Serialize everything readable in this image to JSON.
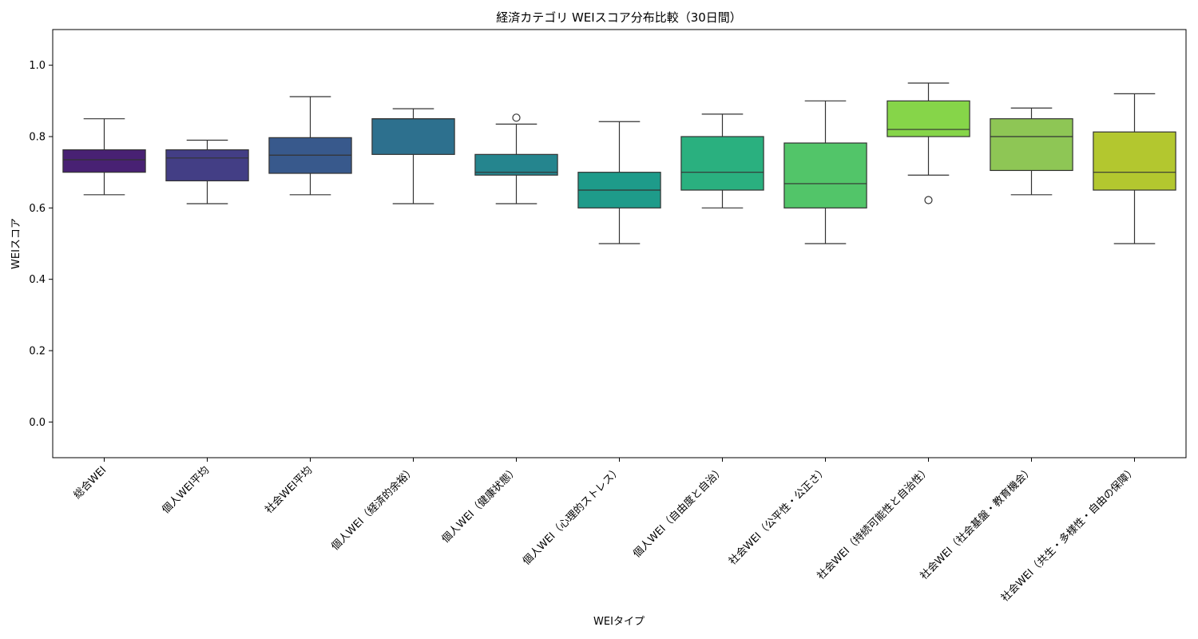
{
  "chart_data": {
    "type": "box",
    "title": "経済カテゴリ WEIスコア分布比較（30日間）",
    "xlabel": "WEIタイプ",
    "ylabel": "WEIスコア",
    "ylim": [
      -0.1,
      1.1
    ],
    "yticks": [
      "0.0",
      "0.2",
      "0.4",
      "0.6",
      "0.8",
      "1.0"
    ],
    "ytick_values": [
      0.0,
      0.2,
      0.4,
      0.6,
      0.8,
      1.0
    ],
    "grid": false,
    "legend": "none",
    "categories": [
      "総合WEI",
      "個人WEI平均",
      "社会WEI平均",
      "個人WEI（経済的余裕）",
      "個人WEI（健康状態）",
      "個人WEI（心理的ストレス）",
      "個人WEI（自由度と自治）",
      "社会WEI（公平性・公正さ）",
      "社会WEI（持続可能性と自治性）",
      "社会WEI（社会基盤・教育機会）",
      "社会WEI（共生・多様性・自由の保障）"
    ],
    "boxes": [
      {
        "whisker_low": 0.637,
        "q1": 0.7,
        "median": 0.735,
        "q3": 0.763,
        "whisker_high": 0.85,
        "outliers": [],
        "color": "#482173"
      },
      {
        "whisker_low": 0.612,
        "q1": 0.676,
        "median": 0.74,
        "q3": 0.763,
        "whisker_high": 0.79,
        "outliers": [],
        "color": "#433e85"
      },
      {
        "whisker_low": 0.637,
        "q1": 0.697,
        "median": 0.748,
        "q3": 0.797,
        "whisker_high": 0.912,
        "outliers": [],
        "color": "#38598c"
      },
      {
        "whisker_low": 0.612,
        "q1": 0.75,
        "median": 0.85,
        "q3": 0.85,
        "whisker_high": 0.878,
        "outliers": [],
        "color": "#2d708e"
      },
      {
        "whisker_low": 0.612,
        "q1": 0.692,
        "median": 0.7,
        "q3": 0.75,
        "whisker_high": 0.835,
        "outliers": [
          0.853
        ],
        "color": "#25858e"
      },
      {
        "whisker_low": 0.5,
        "q1": 0.6,
        "median": 0.65,
        "q3": 0.7,
        "whisker_high": 0.842,
        "outliers": [],
        "color": "#1e9b8a"
      },
      {
        "whisker_low": 0.6,
        "q1": 0.65,
        "median": 0.7,
        "q3": 0.8,
        "whisker_high": 0.863,
        "outliers": [],
        "color": "#2ab07f"
      },
      {
        "whisker_low": 0.5,
        "q1": 0.6,
        "median": 0.668,
        "q3": 0.782,
        "whisker_high": 0.9,
        "outliers": [],
        "color": "#52c569"
      },
      {
        "whisker_low": 0.692,
        "q1": 0.8,
        "median": 0.82,
        "q3": 0.9,
        "whisker_high": 0.95,
        "outliers": [
          0.622
        ],
        "color": "#86d549"
      },
      {
        "whisker_low": 0.637,
        "q1": 0.705,
        "median": 0.8,
        "q3": 0.85,
        "whisker_high": 0.88,
        "outliers": [],
        "color": "#8ec655"
      },
      {
        "whisker_low": 0.5,
        "q1": 0.65,
        "median": 0.7,
        "q3": 0.813,
        "whisker_high": 0.92,
        "outliers": [],
        "color": "#b3c72f"
      }
    ]
  }
}
